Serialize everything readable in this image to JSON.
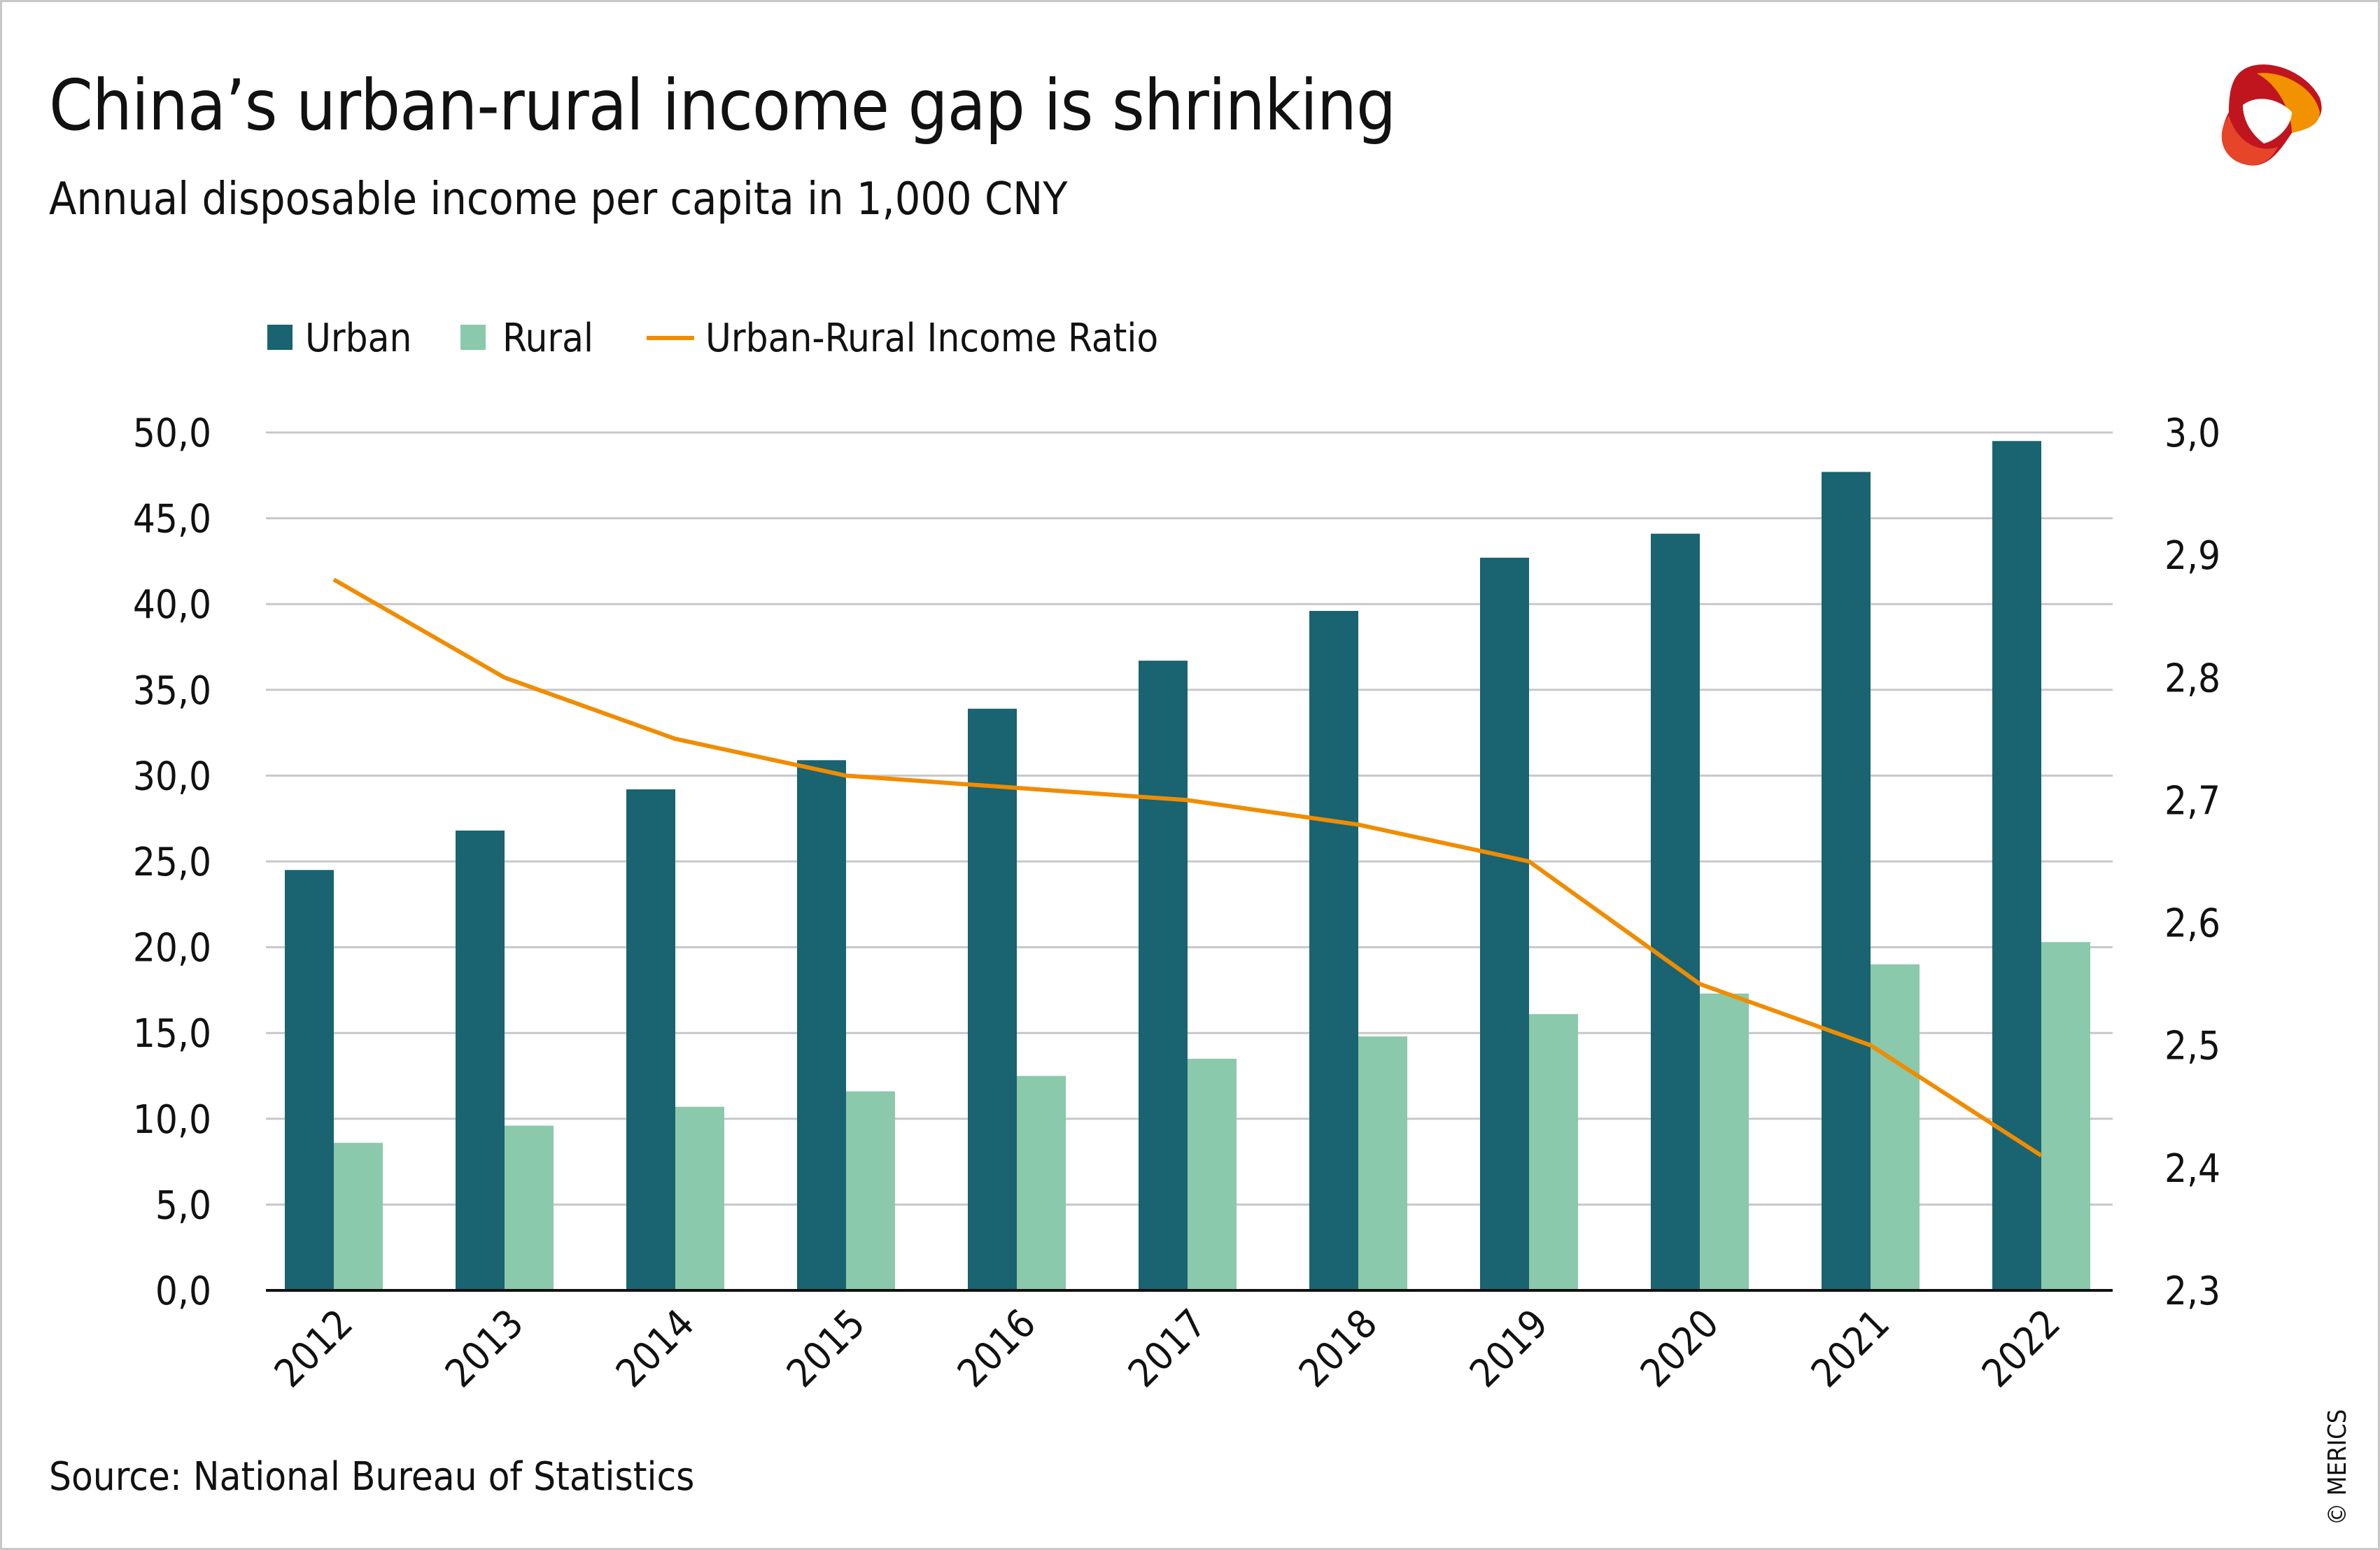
{
  "title": "China’s urban-rural income gap is shrinking",
  "subtitle": "Annual disposable income per capita in 1,000 CNY",
  "source": "Source: National Bureau of Statistics",
  "copyright": "© MERICS",
  "logo_text": "MERICS",
  "colors": {
    "urban": "#1a6370",
    "rural": "#8ac9ab",
    "ratio": "#f08c00",
    "grid": "#c8c8c8"
  },
  "chart_data": {
    "type": "bar",
    "title": "China’s urban-rural income gap is shrinking",
    "subtitle": "Annual disposable income per capita in 1,000 CNY",
    "categories": [
      "2012",
      "2013",
      "2014",
      "2015",
      "2016",
      "2017",
      "2018",
      "2019",
      "2020",
      "2021",
      "2022"
    ],
    "series": [
      {
        "name": "Urban",
        "type": "bar",
        "axis": "left",
        "values": [
          24.5,
          26.8,
          29.2,
          30.9,
          33.9,
          36.7,
          39.6,
          42.7,
          44.1,
          47.7,
          49.5
        ]
      },
      {
        "name": "Rural",
        "type": "bar",
        "axis": "left",
        "values": [
          8.6,
          9.6,
          10.7,
          11.6,
          12.5,
          13.5,
          14.8,
          16.1,
          17.3,
          19.0,
          20.3
        ]
      },
      {
        "name": "Urban-Rural Income Ratio",
        "type": "line",
        "axis": "right",
        "values": [
          2.88,
          2.8,
          2.75,
          2.72,
          2.71,
          2.7,
          2.68,
          2.65,
          2.55,
          2.5,
          2.41
        ]
      }
    ],
    "ylim": [
      0,
      50
    ],
    "y_ticks": [
      "0,0",
      "5,0",
      "10,0",
      "15,0",
      "20,0",
      "25,0",
      "30,0",
      "35,0",
      "40,0",
      "45,0",
      "50,0"
    ],
    "y2lim": [
      2.3,
      3.0
    ],
    "y2_ticks": [
      "2,3",
      "2,4",
      "2,5",
      "2,6",
      "2,7",
      "2,8",
      "2,9",
      "3,0"
    ],
    "xlabel": "",
    "ylabel": "",
    "grid": true,
    "legend_position": "top-left"
  }
}
